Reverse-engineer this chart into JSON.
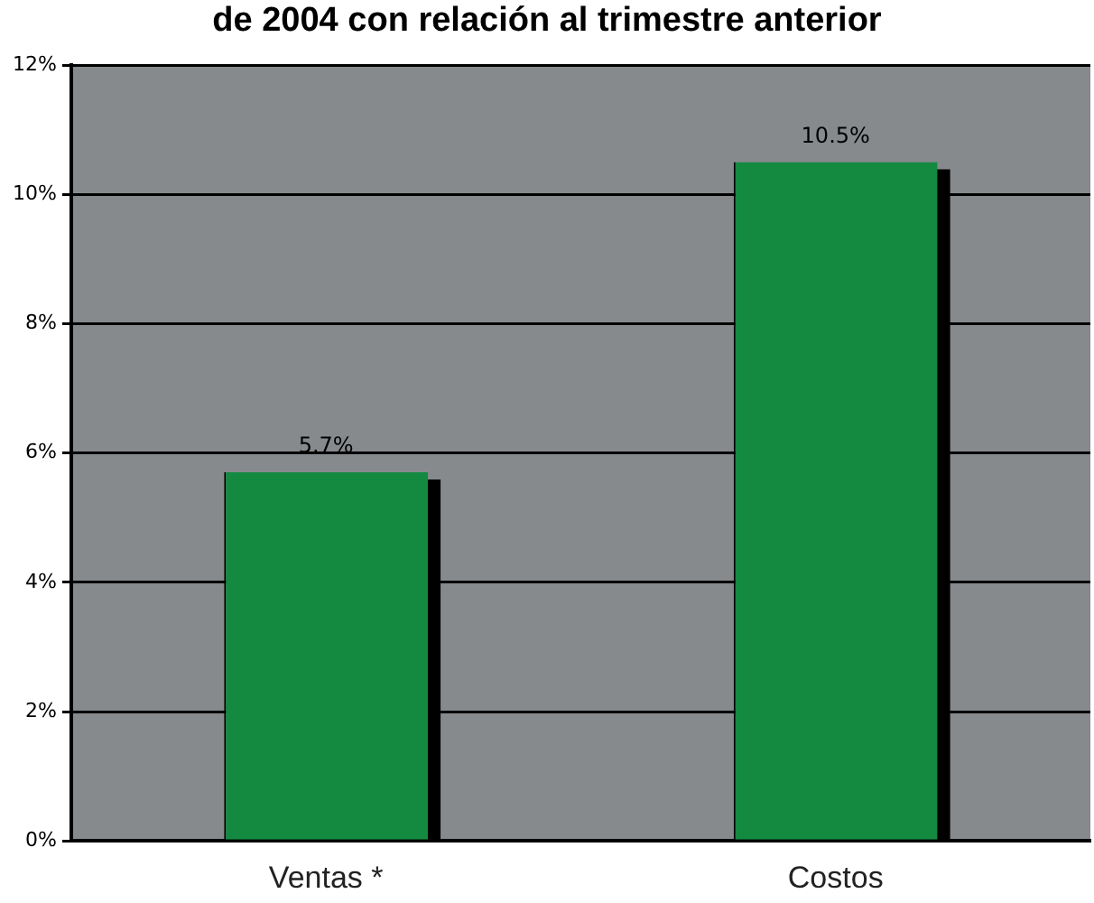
{
  "chart_data": {
    "type": "bar",
    "title": "de 2004 con relación al trimestre anterior",
    "categories": [
      "Ventas *",
      "Costos"
    ],
    "values": [
      5.7,
      10.5
    ],
    "value_labels": [
      "5.7%",
      "10.5%"
    ],
    "color": "#138a40",
    "ylim": [
      0,
      12
    ],
    "yticks": [
      {
        "value": 0,
        "label": "0%"
      },
      {
        "value": 2,
        "label": "2%"
      },
      {
        "value": 4,
        "label": "4%"
      },
      {
        "value": 6,
        "label": "6%"
      },
      {
        "value": 8,
        "label": "8%"
      },
      {
        "value": 10,
        "label": "10%"
      },
      {
        "value": 12,
        "label": "12%"
      }
    ],
    "grid": "y",
    "legend": false
  }
}
